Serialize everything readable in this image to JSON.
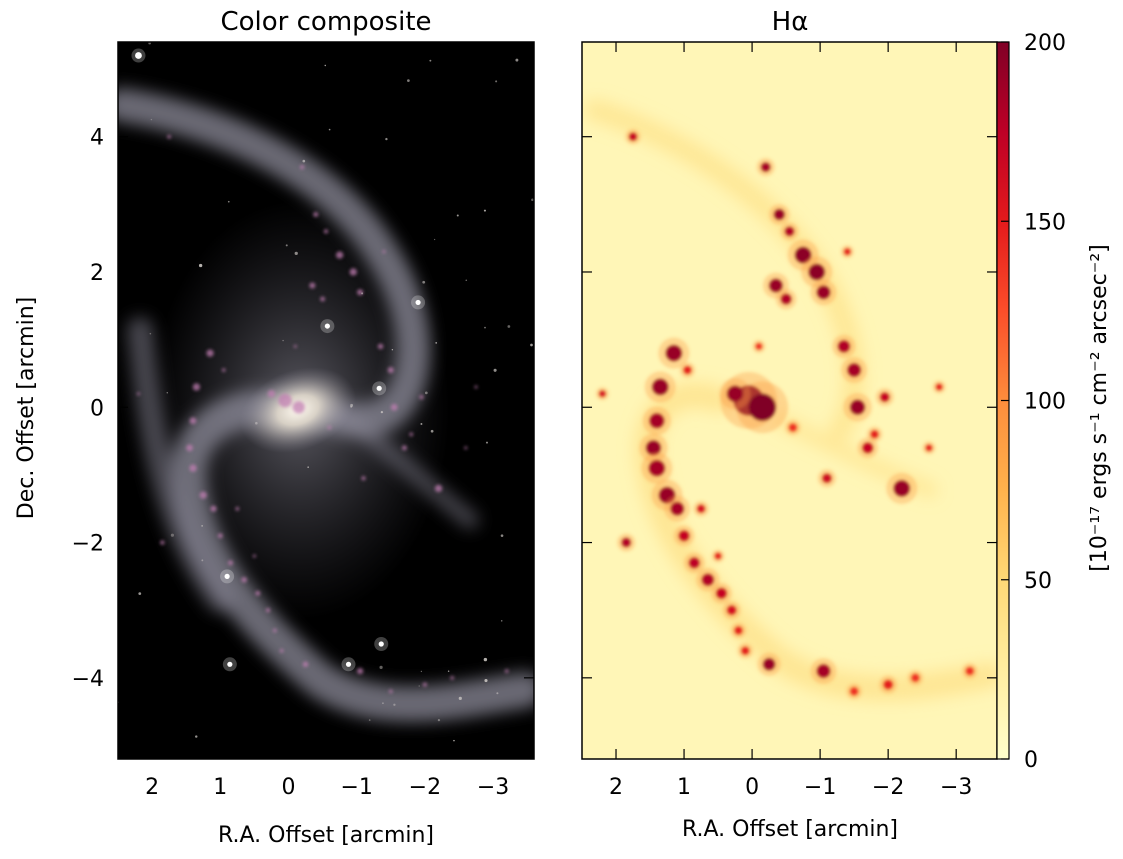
{
  "chart_data": [
    {
      "type": "image",
      "title": "Color composite",
      "xlabel": "R.A. Offset [arcmin]",
      "ylabel": "Dec. Offset [arcmin]",
      "xlim": [
        2.5,
        -3.6
      ],
      "ylim": [
        -5.2,
        5.4
      ],
      "xticks": [
        2,
        1,
        0,
        -1,
        -2,
        -3
      ],
      "xtick_labels": [
        "2",
        "1",
        "0",
        "−1",
        "−2",
        "−3"
      ],
      "yticks": [
        4,
        2,
        0,
        -2,
        -4
      ],
      "ytick_labels": [
        "4",
        "2",
        "0",
        "−2",
        "−4"
      ],
      "colors": {
        "background": "#000000",
        "disk": "#9a9aa8",
        "core": "#f2ecdf",
        "hii": "#c27fb3",
        "stars": "#ffffff"
      },
      "bright_stars": [
        {
          "x": 2.2,
          "y": 5.2
        },
        {
          "x": -0.57,
          "y": 1.2
        },
        {
          "x": 0.9,
          "y": -2.5
        },
        {
          "x": 0.86,
          "y": -3.8
        },
        {
          "x": -0.88,
          "y": -3.8
        },
        {
          "x": -1.36,
          "y": -3.5
        },
        {
          "x": -1.33,
          "y": 0.28
        },
        {
          "x": -1.9,
          "y": 1.55
        }
      ]
    },
    {
      "type": "heatmap",
      "title": "Hα",
      "xlabel": "R.A. Offset [arcmin]",
      "xlim": [
        2.5,
        -3.6
      ],
      "ylim": [
        -5.2,
        5.4
      ],
      "xticks": [
        2,
        1,
        0,
        -1,
        -2,
        -3
      ],
      "xtick_labels": [
        "2",
        "1",
        "0",
        "−1",
        "−2",
        "−3"
      ],
      "yticks": [
        4,
        2,
        0,
        -2,
        -4
      ],
      "colorbar": {
        "label": "[10⁻¹⁷ ergs s⁻¹ cm⁻² arcsec⁻²]",
        "min": 0,
        "max": 200,
        "ticks": [
          0,
          50,
          100,
          150,
          200
        ],
        "tick_labels": [
          "0",
          "50",
          "100",
          "150",
          "200"
        ],
        "colormap": [
          "#ffffcc",
          "#ffeda0",
          "#fed976",
          "#feb24c",
          "#fd8d3c",
          "#fc4e2a",
          "#e31a1c",
          "#bd0026",
          "#800026"
        ]
      },
      "background_value": 12,
      "hii_regions": [
        {
          "x": 0.05,
          "y": 0.1,
          "v": 200,
          "r": 0.22
        },
        {
          "x": -0.15,
          "y": 0.0,
          "v": 200,
          "r": 0.2
        },
        {
          "x": 0.25,
          "y": 0.2,
          "v": 190,
          "r": 0.12
        },
        {
          "x": 1.15,
          "y": 0.8,
          "v": 190,
          "r": 0.12
        },
        {
          "x": 1.35,
          "y": 0.3,
          "v": 190,
          "r": 0.12
        },
        {
          "x": 1.4,
          "y": -0.2,
          "v": 185,
          "r": 0.11
        },
        {
          "x": 1.45,
          "y": -0.6,
          "v": 190,
          "r": 0.11
        },
        {
          "x": 1.4,
          "y": -0.9,
          "v": 185,
          "r": 0.12
        },
        {
          "x": 1.25,
          "y": -1.3,
          "v": 190,
          "r": 0.12
        },
        {
          "x": 1.1,
          "y": -1.5,
          "v": 185,
          "r": 0.1
        },
        {
          "x": 1.0,
          "y": -1.9,
          "v": 170,
          "r": 0.08
        },
        {
          "x": 0.85,
          "y": -2.3,
          "v": 175,
          "r": 0.08
        },
        {
          "x": 0.65,
          "y": -2.55,
          "v": 180,
          "r": 0.09
        },
        {
          "x": 0.45,
          "y": -2.75,
          "v": 170,
          "r": 0.08
        },
        {
          "x": 0.3,
          "y": -3.0,
          "v": 160,
          "r": 0.07
        },
        {
          "x": 0.2,
          "y": -3.3,
          "v": 150,
          "r": 0.06
        },
        {
          "x": 0.1,
          "y": -3.6,
          "v": 150,
          "r": 0.06
        },
        {
          "x": -0.25,
          "y": -3.8,
          "v": 190,
          "r": 0.09
        },
        {
          "x": -1.05,
          "y": -3.9,
          "v": 185,
          "r": 0.1
        },
        {
          "x": -1.5,
          "y": -4.2,
          "v": 140,
          "r": 0.06
        },
        {
          "x": -2.0,
          "y": -4.1,
          "v": 150,
          "r": 0.07
        },
        {
          "x": -2.4,
          "y": -4.0,
          "v": 140,
          "r": 0.06
        },
        {
          "x": -3.2,
          "y": -3.9,
          "v": 140,
          "r": 0.06
        },
        {
          "x": -0.2,
          "y": 3.55,
          "v": 185,
          "r": 0.07
        },
        {
          "x": -0.4,
          "y": 2.85,
          "v": 190,
          "r": 0.08
        },
        {
          "x": -0.55,
          "y": 2.6,
          "v": 180,
          "r": 0.07
        },
        {
          "x": -0.75,
          "y": 2.25,
          "v": 195,
          "r": 0.12
        },
        {
          "x": -0.95,
          "y": 2.0,
          "v": 195,
          "r": 0.12
        },
        {
          "x": -1.05,
          "y": 1.7,
          "v": 190,
          "r": 0.1
        },
        {
          "x": -0.35,
          "y": 1.8,
          "v": 190,
          "r": 0.1
        },
        {
          "x": -0.5,
          "y": 1.6,
          "v": 180,
          "r": 0.08
        },
        {
          "x": -1.35,
          "y": 0.9,
          "v": 180,
          "r": 0.09
        },
        {
          "x": -1.5,
          "y": 0.55,
          "v": 185,
          "r": 0.1
        },
        {
          "x": -1.55,
          "y": 0.0,
          "v": 190,
          "r": 0.11
        },
        {
          "x": -1.95,
          "y": 0.15,
          "v": 170,
          "r": 0.07
        },
        {
          "x": -2.2,
          "y": -1.2,
          "v": 190,
          "r": 0.12
        },
        {
          "x": -1.7,
          "y": -0.6,
          "v": 170,
          "r": 0.08
        },
        {
          "x": -1.1,
          "y": -1.05,
          "v": 165,
          "r": 0.07
        },
        {
          "x": -0.6,
          "y": -0.3,
          "v": 140,
          "r": 0.06
        },
        {
          "x": -1.8,
          "y": -0.4,
          "v": 150,
          "r": 0.06
        },
        {
          "x": 1.75,
          "y": 4.0,
          "v": 170,
          "r": 0.06
        },
        {
          "x": 2.2,
          "y": 0.2,
          "v": 160,
          "r": 0.05
        },
        {
          "x": 1.85,
          "y": -2.0,
          "v": 180,
          "r": 0.07
        },
        {
          "x": 0.95,
          "y": 0.55,
          "v": 150,
          "r": 0.06
        },
        {
          "x": 0.75,
          "y": -1.5,
          "v": 160,
          "r": 0.06
        },
        {
          "x": 0.5,
          "y": -2.2,
          "v": 150,
          "r": 0.05
        },
        {
          "x": -1.4,
          "y": 2.3,
          "v": 150,
          "r": 0.05
        },
        {
          "x": -2.6,
          "y": -0.6,
          "v": 150,
          "r": 0.05
        },
        {
          "x": -2.75,
          "y": 0.3,
          "v": 150,
          "r": 0.05
        },
        {
          "x": -0.1,
          "y": 0.9,
          "v": 140,
          "r": 0.05
        }
      ]
    }
  ]
}
